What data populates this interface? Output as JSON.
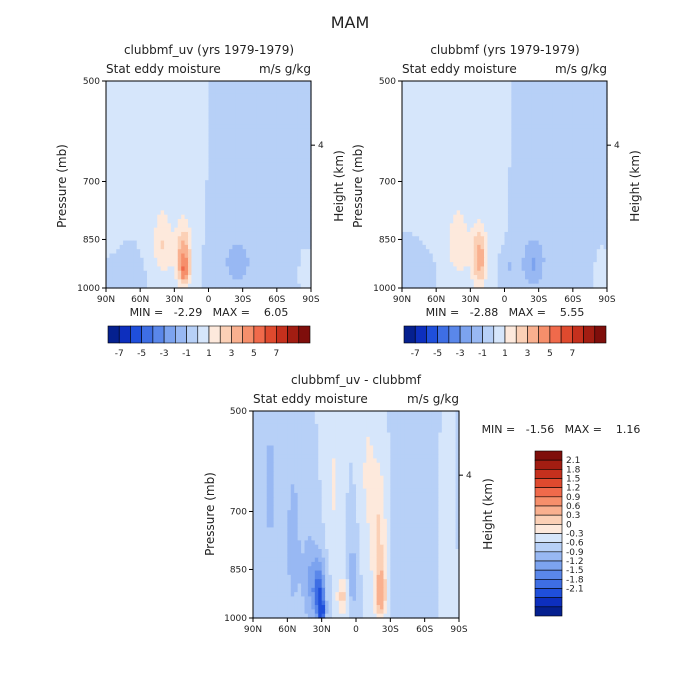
{
  "figure_title": "MAM",
  "colors": {
    "neg": [
      "#d6e6fb",
      "#b7d0f7",
      "#98b8f3",
      "#7ca3ef",
      "#5a87ea",
      "#3e6ee4",
      "#1f4fdb",
      "#0d2fbe",
      "#05208f"
    ],
    "pos": [
      "#fde9dc",
      "#fbd0b6",
      "#f9b08f",
      "#f68f6b",
      "#f06a4b",
      "#df4a2e",
      "#c5301d",
      "#a21d12",
      "#7f0e0b"
    ]
  },
  "chart_data": [
    {
      "type": "heatmap",
      "title": "clubbmf_uv (yrs 1979-1979)",
      "subtitle_left": "Stat eddy moisture",
      "subtitle_right": "m/s g/kg",
      "ylabel": "Pressure (mb)",
      "ylabel_right": "Height (km)",
      "x_ticks": [
        "90N",
        "60N",
        "30N",
        "0",
        "30S",
        "60S",
        "90S"
      ],
      "x_range": [
        90,
        -90
      ],
      "y_ticks": [
        500,
        700,
        850,
        1000
      ],
      "y_range": [
        500,
        1000
      ],
      "y_log": true,
      "right_ticks": [
        "4"
      ],
      "stats": "MIN =   -2.29   MAX =    6.05",
      "colorbar": {
        "orientation": "horizontal",
        "labels": [
          "-7",
          "-5",
          "-3",
          "-1",
          "1",
          "3",
          "5",
          "7"
        ],
        "levels": [
          -8,
          -7,
          -6,
          -5,
          -4,
          -3,
          -2,
          -1,
          0,
          1,
          2,
          3,
          4,
          5,
          6,
          7,
          8
        ]
      },
      "min": -2.29,
      "max": 6.05,
      "features": [
        {
          "lat": 80,
          "p": 600,
          "w": 8,
          "h": 180,
          "v": 0.6
        },
        {
          "lat": 45,
          "p": 640,
          "w": 14,
          "h": 220,
          "v": 0.7
        },
        {
          "lat": 20,
          "p": 600,
          "w": 10,
          "h": 180,
          "v": 0.55
        },
        {
          "lat": 40,
          "p": 870,
          "w": 8,
          "h": 90,
          "v": 1.8
        },
        {
          "lat": 22,
          "p": 900,
          "w": 7,
          "h": 90,
          "v": 3.8
        },
        {
          "lat": 21,
          "p": 950,
          "w": 4,
          "h": 40,
          "v": 2.3
        },
        {
          "lat": -25,
          "p": 920,
          "w": 12,
          "h": 70,
          "v": -1.6
        },
        {
          "lat": -5,
          "p": 940,
          "w": 6,
          "h": 40,
          "v": -0.8
        },
        {
          "lat": 70,
          "p": 950,
          "w": 10,
          "h": 60,
          "v": -0.6
        },
        {
          "lat": -50,
          "p": 700,
          "w": 28,
          "h": 300,
          "v": -0.4
        },
        {
          "lat": -85,
          "p": 950,
          "w": 4,
          "h": 50,
          "v": 0.6
        }
      ]
    },
    {
      "type": "heatmap",
      "title": "clubbmf (yrs 1979-1979)",
      "subtitle_left": "Stat eddy moisture",
      "subtitle_right": "m/s g/kg",
      "ylabel": "Pressure (mb)",
      "ylabel_right": "Height (km)",
      "x_ticks": [
        "90N",
        "60N",
        "30N",
        "0",
        "30S",
        "60S",
        "90S"
      ],
      "x_range": [
        90,
        -90
      ],
      "y_ticks": [
        500,
        700,
        850,
        1000
      ],
      "y_range": [
        500,
        1000
      ],
      "y_log": true,
      "right_ticks": [
        "4"
      ],
      "stats": "MIN =   -2.88   MAX =    5.55",
      "colorbar": {
        "orientation": "horizontal",
        "labels": [
          "-7",
          "-5",
          "-3",
          "-1",
          "1",
          "3",
          "5",
          "7"
        ],
        "levels": [
          -8,
          -7,
          -6,
          -5,
          -4,
          -3,
          -2,
          -1,
          0,
          1,
          2,
          3,
          4,
          5,
          6,
          7,
          8
        ]
      },
      "min": -2.88,
      "max": 5.55,
      "features": [
        {
          "lat": 45,
          "p": 620,
          "w": 18,
          "h": 260,
          "v": 0.7
        },
        {
          "lat": 12,
          "p": 620,
          "w": 10,
          "h": 200,
          "v": 0.5
        },
        {
          "lat": 40,
          "p": 870,
          "w": 9,
          "h": 90,
          "v": 1.7
        },
        {
          "lat": 22,
          "p": 905,
          "w": 7,
          "h": 90,
          "v": 3.5
        },
        {
          "lat": -25,
          "p": 920,
          "w": 10,
          "h": 75,
          "v": -2.0
        },
        {
          "lat": -5,
          "p": 930,
          "w": 6,
          "h": 45,
          "v": -1.0
        },
        {
          "lat": 75,
          "p": 960,
          "w": 10,
          "h": 60,
          "v": -0.8
        },
        {
          "lat": -50,
          "p": 700,
          "w": 28,
          "h": 300,
          "v": -0.45
        },
        {
          "lat": -85,
          "p": 950,
          "w": 4,
          "h": 50,
          "v": 0.8
        }
      ]
    },
    {
      "type": "heatmap",
      "title": "clubbmf_uv - clubbmf",
      "subtitle_left": "Stat eddy moisture",
      "subtitle_right": "m/s g/kg",
      "ylabel": "Pressure (mb)",
      "ylabel_right": "Height (km)",
      "x_ticks": [
        "90N",
        "60N",
        "30N",
        "0",
        "30S",
        "60S",
        "90S"
      ],
      "x_range": [
        90,
        -90
      ],
      "y_ticks": [
        500,
        700,
        850,
        1000
      ],
      "y_range": [
        500,
        1000
      ],
      "y_log": true,
      "right_ticks": [
        "4"
      ],
      "stats": "MIN =   -1.56   MAX =    1.16",
      "colorbar": {
        "orientation": "vertical",
        "labels": [
          "2.1",
          "1.8",
          "1.5",
          "1.2",
          "0.9",
          "0.6",
          "0.3",
          "0",
          "-0.3",
          "-0.6",
          "-0.9",
          "-1.2",
          "-1.5",
          "-1.8",
          "-2.1"
        ],
        "levels": [
          -2.4,
          -2.1,
          -1.8,
          -1.5,
          -1.2,
          -0.9,
          -0.6,
          -0.3,
          0,
          0.3,
          0.6,
          0.9,
          1.2,
          1.5,
          1.8,
          2.1,
          2.4
        ]
      },
      "min": -1.56,
      "max": 1.16,
      "features": [
        {
          "lat": 75,
          "p": 650,
          "w": 8,
          "h": 250,
          "v": -0.35
        },
        {
          "lat": 55,
          "p": 780,
          "w": 6,
          "h": 200,
          "v": -0.5
        },
        {
          "lat": 32,
          "p": 920,
          "w": 5,
          "h": 90,
          "v": -1.3
        },
        {
          "lat": 30,
          "p": 980,
          "w": 3,
          "h": 40,
          "v": -1.4
        },
        {
          "lat": 40,
          "p": 880,
          "w": 8,
          "h": 140,
          "v": -0.6
        },
        {
          "lat": 12,
          "p": 930,
          "w": 5,
          "h": 60,
          "v": 0.7
        },
        {
          "lat": -20,
          "p": 800,
          "w": 7,
          "h": 220,
          "v": 0.7
        },
        {
          "lat": -22,
          "p": 920,
          "w": 4,
          "h": 60,
          "v": 1.0
        },
        {
          "lat": -10,
          "p": 620,
          "w": 6,
          "h": 150,
          "v": 0.35
        },
        {
          "lat": 20,
          "p": 640,
          "w": 6,
          "h": 140,
          "v": 0.35
        },
        {
          "lat": 3,
          "p": 880,
          "w": 4,
          "h": 120,
          "v": -0.5
        },
        {
          "lat": -55,
          "p": 700,
          "w": 20,
          "h": 300,
          "v": -0.3
        },
        {
          "lat": -78,
          "p": 780,
          "w": 6,
          "h": 280,
          "v": 0.35
        }
      ]
    }
  ]
}
